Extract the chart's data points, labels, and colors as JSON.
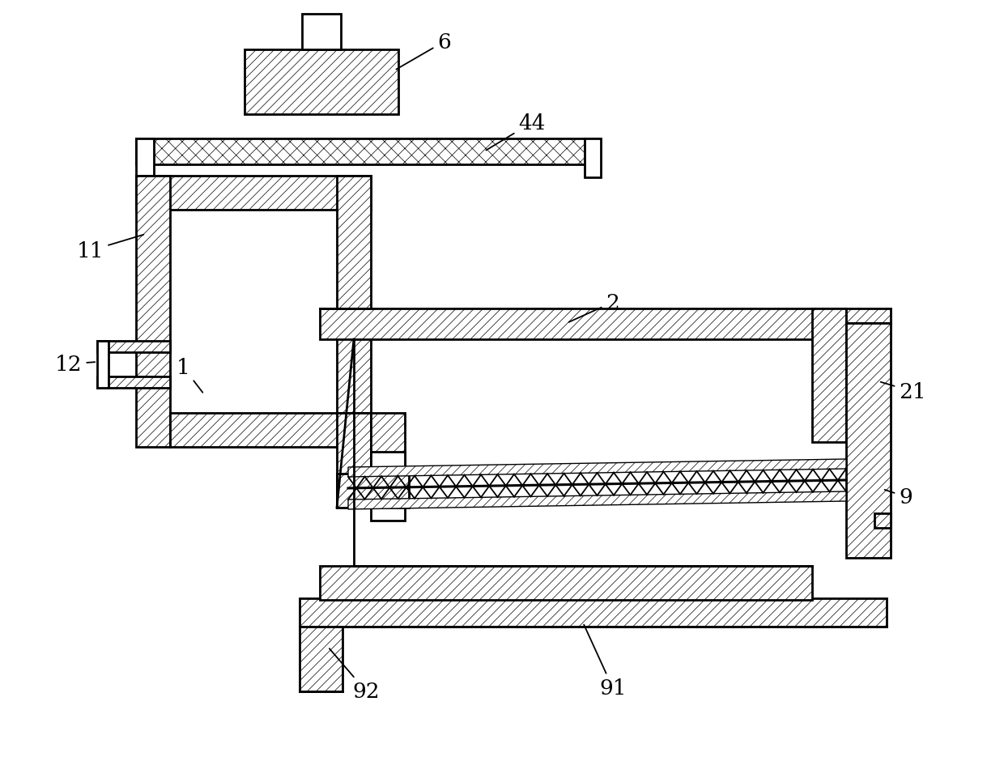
{
  "background_color": "#ffffff",
  "lw": 2.0,
  "hatch_lw": 0.5,
  "figsize": [
    12.4,
    9.62
  ],
  "dpi": 100
}
